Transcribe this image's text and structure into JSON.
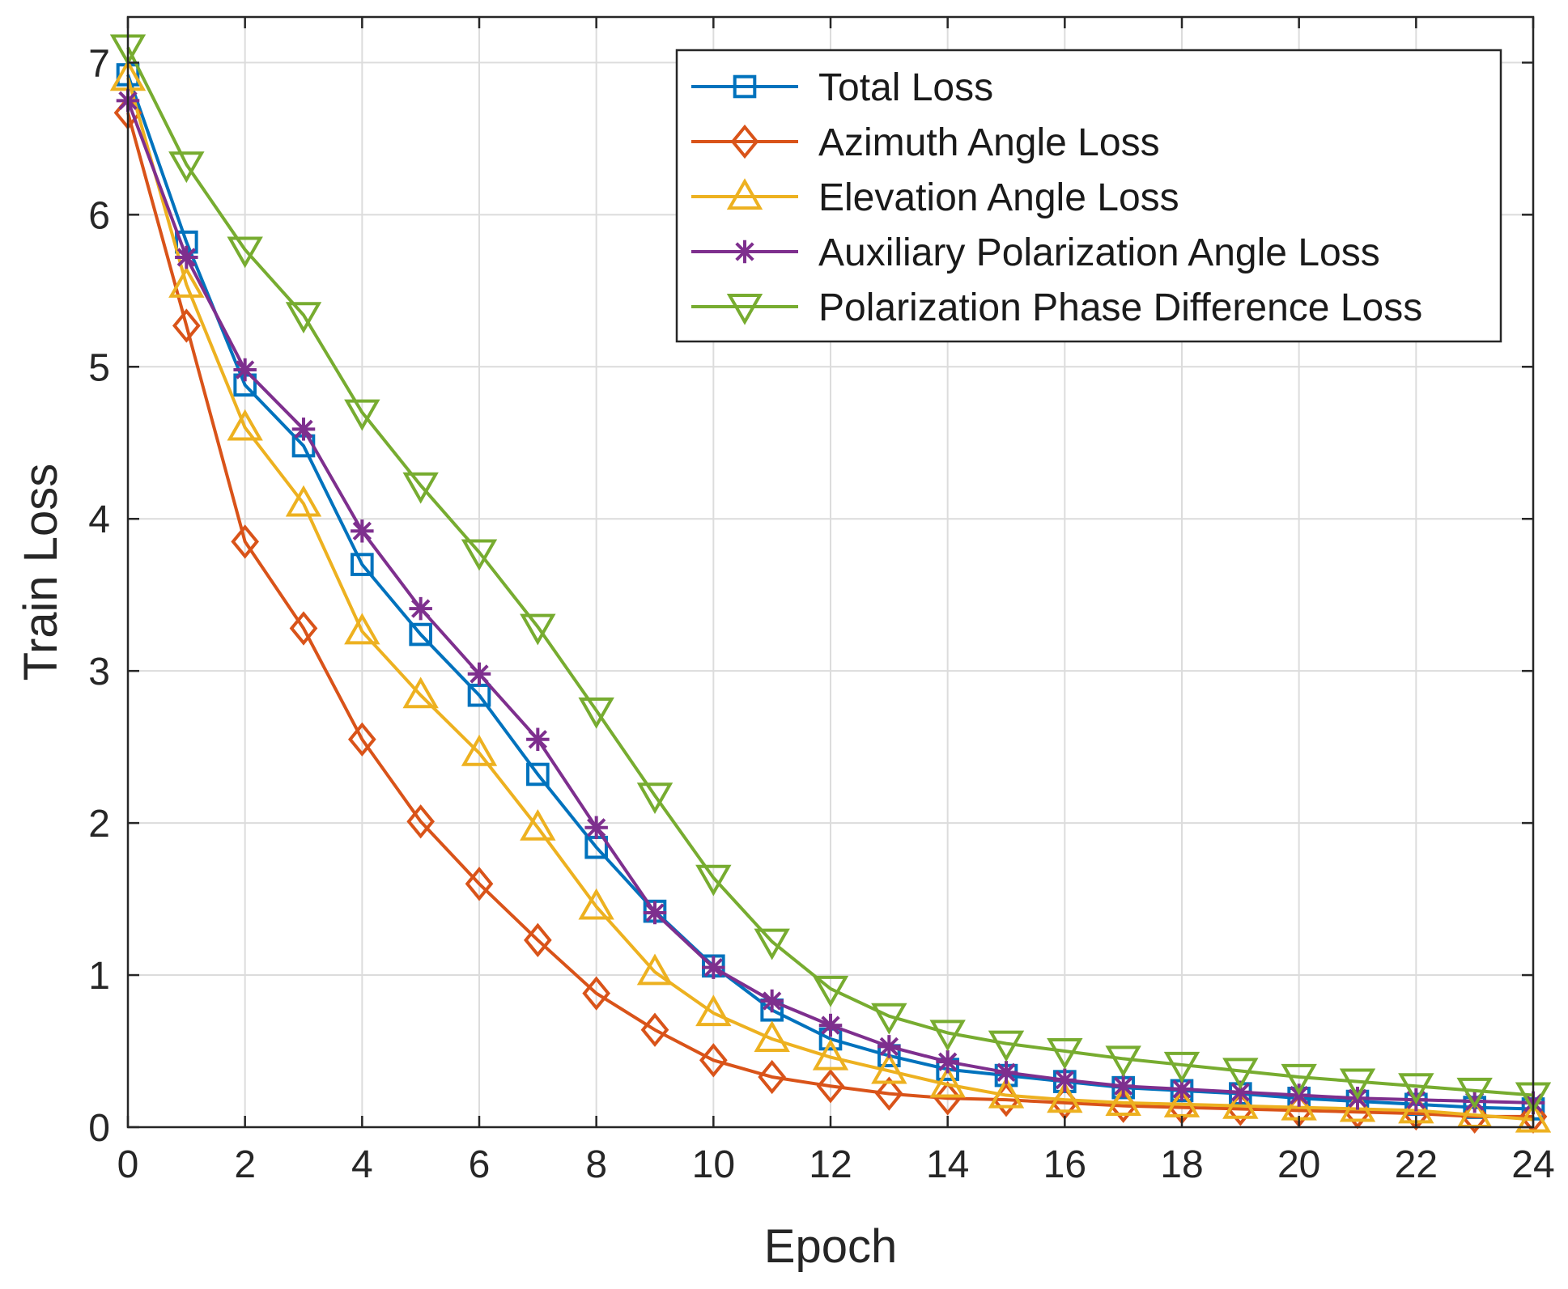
{
  "chart_data": {
    "type": "line",
    "title": "",
    "xlabel": "Epoch",
    "ylabel": "Train Loss",
    "xlim": [
      0,
      24
    ],
    "ylim": [
      0,
      7.3
    ],
    "xticks": [
      0,
      2,
      4,
      6,
      8,
      10,
      12,
      14,
      16,
      18,
      20,
      22,
      24
    ],
    "yticks": [
      0,
      1,
      2,
      3,
      4,
      5,
      6,
      7
    ],
    "grid": true,
    "legend_position": "top-right",
    "x": [
      0,
      1,
      2,
      3,
      4,
      5,
      6,
      7,
      8,
      9,
      10,
      11,
      12,
      13,
      14,
      15,
      16,
      17,
      18,
      19,
      20,
      21,
      22,
      23,
      24
    ],
    "series": [
      {
        "name": "Total Loss",
        "color": "#0072BD",
        "marker": "square",
        "values": [
          6.92,
          5.82,
          4.88,
          4.48,
          3.7,
          3.24,
          2.84,
          2.32,
          1.84,
          1.42,
          1.06,
          0.77,
          0.58,
          0.47,
          0.38,
          0.34,
          0.3,
          0.26,
          0.24,
          0.22,
          0.19,
          0.17,
          0.15,
          0.13,
          0.12
        ]
      },
      {
        "name": "Azimuth Angle Loss",
        "color": "#D95319",
        "marker": "diamond",
        "values": [
          6.67,
          5.27,
          3.85,
          3.28,
          2.55,
          2.01,
          1.6,
          1.23,
          0.88,
          0.64,
          0.44,
          0.33,
          0.27,
          0.22,
          0.19,
          0.18,
          0.16,
          0.14,
          0.13,
          0.12,
          0.11,
          0.1,
          0.09,
          0.07,
          0.07
        ]
      },
      {
        "name": "Elevation Angle Loss",
        "color": "#EDB120",
        "marker": "triangle-up",
        "values": [
          6.9,
          5.54,
          4.6,
          4.1,
          3.26,
          2.84,
          2.46,
          1.97,
          1.45,
          1.02,
          0.75,
          0.58,
          0.46,
          0.37,
          0.28,
          0.21,
          0.18,
          0.16,
          0.15,
          0.14,
          0.13,
          0.12,
          0.11,
          0.08,
          0.05
        ]
      },
      {
        "name": "Auxiliary Polarization Angle Loss",
        "color": "#7E2F8E",
        "marker": "star",
        "values": [
          6.75,
          5.72,
          4.98,
          4.59,
          3.92,
          3.41,
          2.98,
          2.55,
          1.97,
          1.41,
          1.05,
          0.83,
          0.67,
          0.53,
          0.43,
          0.36,
          0.31,
          0.27,
          0.25,
          0.23,
          0.21,
          0.19,
          0.18,
          0.17,
          0.16
        ]
      },
      {
        "name": "Polarization Phase Difference Loss",
        "color": "#77AC30",
        "marker": "triangle-down",
        "values": [
          7.1,
          6.33,
          5.77,
          5.34,
          4.7,
          4.22,
          3.78,
          3.29,
          2.74,
          2.18,
          1.64,
          1.22,
          0.91,
          0.73,
          0.62,
          0.55,
          0.5,
          0.45,
          0.41,
          0.37,
          0.33,
          0.3,
          0.27,
          0.24,
          0.21
        ]
      }
    ]
  }
}
